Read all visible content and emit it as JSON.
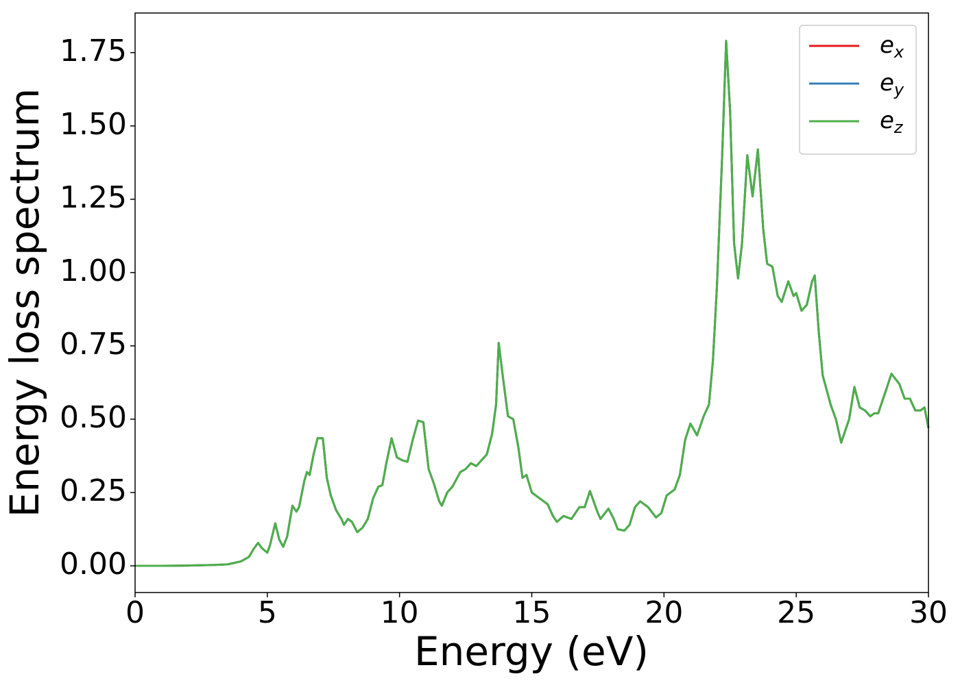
{
  "chart_data": {
    "type": "line",
    "xlabel": "Energy (eV)",
    "ylabel": "Energy loss spectrum",
    "x": [
      0,
      1,
      2,
      3,
      3.5,
      4,
      4.3,
      4.5,
      4.65,
      4.8,
      5.0,
      5.1,
      5.3,
      5.45,
      5.6,
      5.75,
      5.95,
      6.1,
      6.2,
      6.4,
      6.5,
      6.6,
      6.75,
      6.9,
      7.1,
      7.25,
      7.4,
      7.6,
      7.8,
      7.9,
      8.05,
      8.2,
      8.4,
      8.6,
      8.8,
      9.0,
      9.2,
      9.35,
      9.5,
      9.7,
      9.9,
      10.1,
      10.3,
      10.5,
      10.7,
      10.9,
      11.1,
      11.3,
      11.5,
      11.6,
      11.8,
      12.0,
      12.3,
      12.5,
      12.7,
      12.9,
      13.1,
      13.3,
      13.5,
      13.65,
      13.75,
      13.9,
      14.1,
      14.3,
      14.5,
      14.65,
      14.8,
      15.0,
      15.3,
      15.6,
      15.8,
      15.95,
      16.2,
      16.5,
      16.8,
      17.0,
      17.2,
      17.5,
      17.6,
      17.9,
      18.1,
      18.25,
      18.5,
      18.7,
      18.9,
      19.1,
      19.4,
      19.7,
      19.9,
      20.1,
      20.4,
      20.6,
      20.8,
      21.0,
      21.25,
      21.5,
      21.7,
      21.85,
      22.0,
      22.2,
      22.35,
      22.5,
      22.65,
      22.8,
      22.95,
      23.15,
      23.35,
      23.55,
      23.75,
      23.9,
      24.1,
      24.3,
      24.45,
      24.7,
      24.9,
      25.0,
      25.2,
      25.4,
      25.6,
      25.7,
      25.85,
      26.0,
      26.3,
      26.5,
      26.7,
      27.0,
      27.2,
      27.4,
      27.6,
      27.8,
      27.95,
      28.1,
      28.4,
      28.6,
      28.9,
      29.1,
      29.3,
      29.5,
      29.7,
      29.85,
      30.0
    ],
    "series": [
      {
        "name": "ex",
        "color": "#e41a1c",
        "values": [
          0,
          0,
          0.001,
          0.003,
          0.005,
          0.015,
          0.03,
          0.06,
          0.078,
          0.06,
          0.045,
          0.07,
          0.145,
          0.09,
          0.065,
          0.1,
          0.205,
          0.185,
          0.2,
          0.29,
          0.32,
          0.31,
          0.38,
          0.435,
          0.435,
          0.3,
          0.24,
          0.19,
          0.16,
          0.14,
          0.16,
          0.15,
          0.115,
          0.13,
          0.16,
          0.23,
          0.27,
          0.275,
          0.35,
          0.435,
          0.37,
          0.36,
          0.355,
          0.43,
          0.495,
          0.49,
          0.33,
          0.28,
          0.22,
          0.205,
          0.25,
          0.27,
          0.32,
          0.33,
          0.35,
          0.34,
          0.36,
          0.38,
          0.45,
          0.55,
          0.76,
          0.65,
          0.51,
          0.5,
          0.4,
          0.3,
          0.31,
          0.25,
          0.23,
          0.21,
          0.17,
          0.15,
          0.17,
          0.16,
          0.2,
          0.2,
          0.255,
          0.18,
          0.16,
          0.195,
          0.16,
          0.125,
          0.12,
          0.14,
          0.2,
          0.22,
          0.2,
          0.165,
          0.18,
          0.24,
          0.26,
          0.31,
          0.43,
          0.485,
          0.445,
          0.51,
          0.55,
          0.7,
          0.95,
          1.4,
          1.79,
          1.55,
          1.1,
          0.98,
          1.1,
          1.4,
          1.26,
          1.42,
          1.15,
          1.03,
          1.02,
          0.92,
          0.9,
          0.97,
          0.92,
          0.93,
          0.87,
          0.89,
          0.97,
          0.99,
          0.8,
          0.65,
          0.55,
          0.5,
          0.42,
          0.5,
          0.61,
          0.54,
          0.53,
          0.51,
          0.52,
          0.52,
          0.6,
          0.655,
          0.62,
          0.57,
          0.57,
          0.53,
          0.53,
          0.54,
          0.47
        ]
      },
      {
        "name": "ey",
        "color": "#377eb8",
        "values": [
          0,
          0,
          0.001,
          0.003,
          0.005,
          0.015,
          0.03,
          0.06,
          0.078,
          0.06,
          0.045,
          0.07,
          0.145,
          0.09,
          0.065,
          0.1,
          0.205,
          0.185,
          0.2,
          0.29,
          0.32,
          0.31,
          0.38,
          0.435,
          0.435,
          0.3,
          0.24,
          0.19,
          0.16,
          0.14,
          0.16,
          0.15,
          0.115,
          0.13,
          0.16,
          0.23,
          0.27,
          0.275,
          0.35,
          0.435,
          0.37,
          0.36,
          0.355,
          0.43,
          0.495,
          0.49,
          0.33,
          0.28,
          0.22,
          0.205,
          0.25,
          0.27,
          0.32,
          0.33,
          0.35,
          0.34,
          0.36,
          0.38,
          0.45,
          0.55,
          0.76,
          0.65,
          0.51,
          0.5,
          0.4,
          0.3,
          0.31,
          0.25,
          0.23,
          0.21,
          0.17,
          0.15,
          0.17,
          0.16,
          0.2,
          0.2,
          0.255,
          0.18,
          0.16,
          0.195,
          0.16,
          0.125,
          0.12,
          0.14,
          0.2,
          0.22,
          0.2,
          0.165,
          0.18,
          0.24,
          0.26,
          0.31,
          0.43,
          0.485,
          0.445,
          0.51,
          0.55,
          0.7,
          0.95,
          1.4,
          1.79,
          1.55,
          1.1,
          0.98,
          1.1,
          1.4,
          1.26,
          1.42,
          1.15,
          1.03,
          1.02,
          0.92,
          0.9,
          0.97,
          0.92,
          0.93,
          0.87,
          0.89,
          0.97,
          0.99,
          0.8,
          0.65,
          0.55,
          0.5,
          0.42,
          0.5,
          0.61,
          0.54,
          0.53,
          0.51,
          0.52,
          0.52,
          0.6,
          0.655,
          0.62,
          0.57,
          0.57,
          0.53,
          0.53,
          0.54,
          0.47
        ]
      },
      {
        "name": "ez",
        "color": "#4daf4a",
        "values": [
          0,
          0,
          0.001,
          0.003,
          0.005,
          0.015,
          0.03,
          0.06,
          0.078,
          0.06,
          0.045,
          0.07,
          0.145,
          0.09,
          0.065,
          0.1,
          0.205,
          0.185,
          0.2,
          0.29,
          0.32,
          0.31,
          0.38,
          0.435,
          0.435,
          0.3,
          0.24,
          0.19,
          0.16,
          0.14,
          0.16,
          0.15,
          0.115,
          0.13,
          0.16,
          0.23,
          0.27,
          0.275,
          0.35,
          0.435,
          0.37,
          0.36,
          0.355,
          0.43,
          0.495,
          0.49,
          0.33,
          0.28,
          0.22,
          0.205,
          0.25,
          0.27,
          0.32,
          0.33,
          0.35,
          0.34,
          0.36,
          0.38,
          0.45,
          0.55,
          0.76,
          0.65,
          0.51,
          0.5,
          0.4,
          0.3,
          0.31,
          0.25,
          0.23,
          0.21,
          0.17,
          0.15,
          0.17,
          0.16,
          0.2,
          0.2,
          0.255,
          0.18,
          0.16,
          0.195,
          0.16,
          0.125,
          0.12,
          0.14,
          0.2,
          0.22,
          0.2,
          0.165,
          0.18,
          0.24,
          0.26,
          0.31,
          0.43,
          0.485,
          0.445,
          0.51,
          0.55,
          0.7,
          0.95,
          1.4,
          1.79,
          1.55,
          1.1,
          0.98,
          1.1,
          1.4,
          1.26,
          1.42,
          1.15,
          1.03,
          1.02,
          0.92,
          0.9,
          0.97,
          0.92,
          0.93,
          0.87,
          0.89,
          0.97,
          0.99,
          0.8,
          0.65,
          0.55,
          0.5,
          0.42,
          0.5,
          0.61,
          0.54,
          0.53,
          0.51,
          0.52,
          0.52,
          0.6,
          0.655,
          0.62,
          0.57,
          0.57,
          0.53,
          0.53,
          0.54,
          0.47
        ]
      }
    ],
    "xlim": [
      0,
      30
    ],
    "xticks": [
      0,
      5,
      10,
      15,
      20,
      25,
      30
    ],
    "ylim": [
      -0.091,
      1.885
    ],
    "yticks": [
      {
        "value": 0,
        "label": "0.00"
      },
      0.25,
      {
        "value": 0.5,
        "label": "0.50"
      },
      0.75,
      {
        "value": 1,
        "label": "1.00"
      },
      1.25,
      {
        "value": 1.5,
        "label": "1.50"
      },
      1.75
    ],
    "legend": "upper right",
    "grid": false
  }
}
